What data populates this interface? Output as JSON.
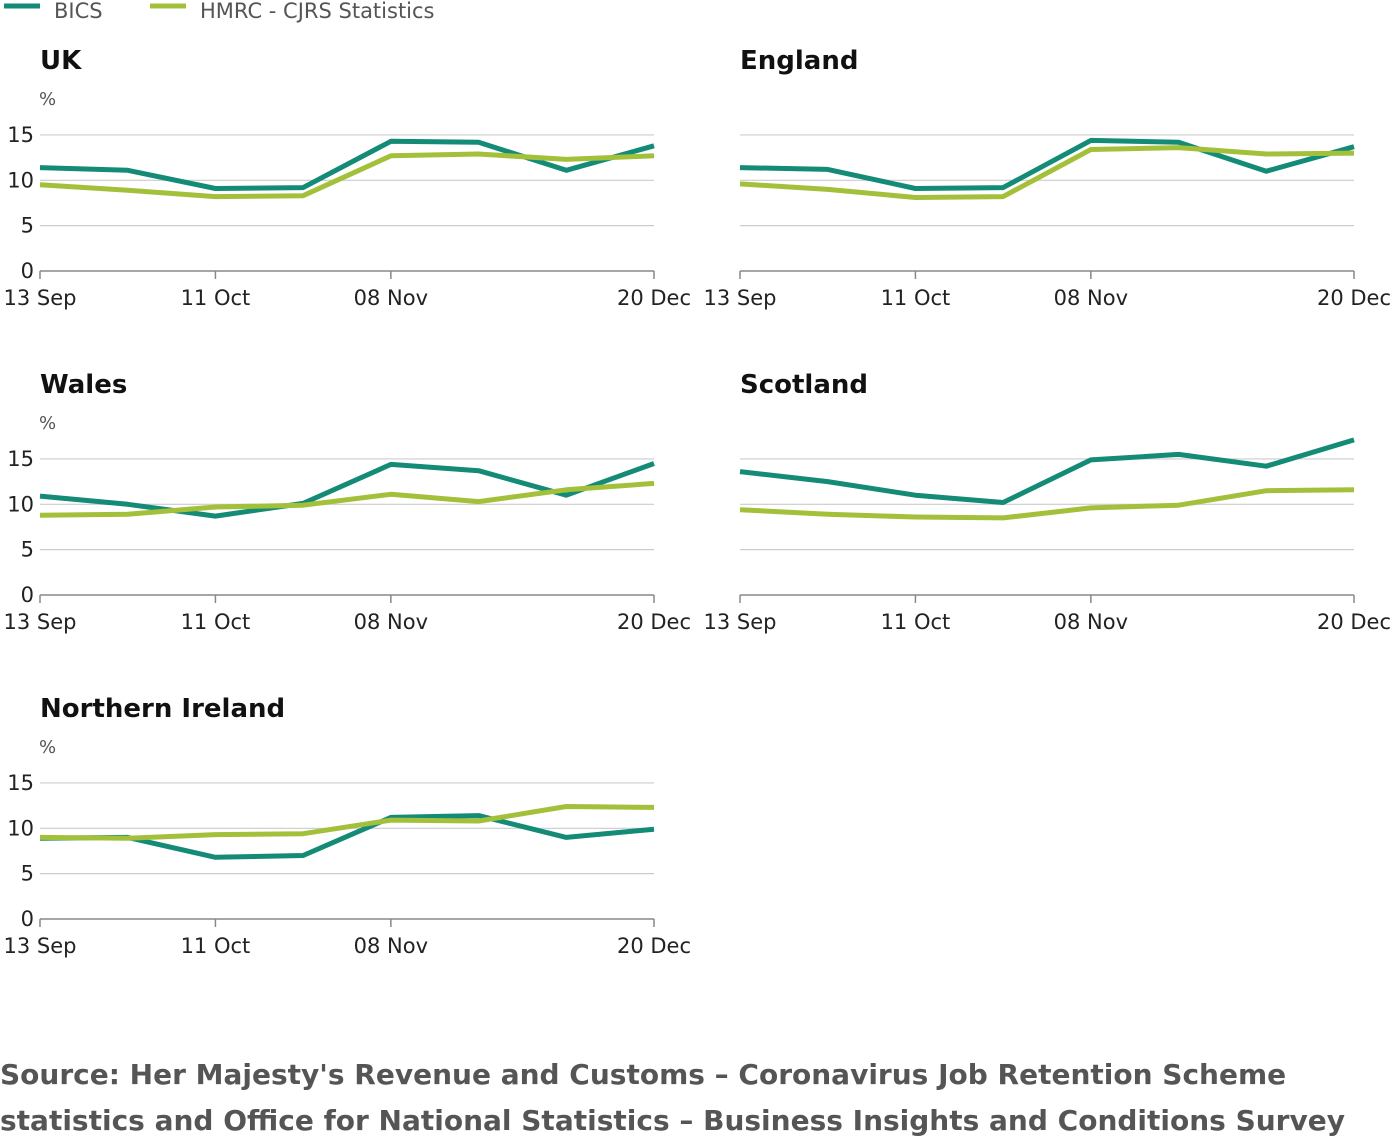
{
  "legend": [
    {
      "name": "BICS",
      "color": "#138b76"
    },
    {
      "name": "HMRC - CJRS Statistics",
      "color": "#a3c03a"
    }
  ],
  "source": "Source: Her Majesty's Revenue and Customs – Coronavirus Job Retention Scheme statistics and Office for National Statistics – Business Insights and Conditions Survey",
  "chart_data": [
    {
      "type": "line",
      "title": "UK",
      "ylabel": "%",
      "x": [
        "13 Sep",
        "27 Sep",
        "11 Oct",
        "25 Oct",
        "08 Nov",
        "22 Nov",
        "06 Dec",
        "20 Dec"
      ],
      "xticks": [
        "13 Sep",
        "11 Oct",
        "08 Nov",
        "20 Dec"
      ],
      "yticks": [
        0,
        5,
        10,
        15
      ],
      "ylim": [
        0,
        18
      ],
      "grid": true,
      "series": [
        {
          "name": "BICS",
          "color": "#138b76",
          "values": [
            11.4,
            11.1,
            9.1,
            9.2,
            14.3,
            14.2,
            11.1,
            13.8
          ]
        },
        {
          "name": "HMRC - CJRS Statistics",
          "color": "#a3c03a",
          "values": [
            9.5,
            8.9,
            8.2,
            8.3,
            12.7,
            12.9,
            12.3,
            12.7
          ]
        }
      ]
    },
    {
      "type": "line",
      "title": "England",
      "ylabel": "",
      "x": [
        "13 Sep",
        "27 Sep",
        "11 Oct",
        "25 Oct",
        "08 Nov",
        "22 Nov",
        "06 Dec",
        "20 Dec"
      ],
      "xticks": [
        "13 Sep",
        "11 Oct",
        "08 Nov",
        "20 Dec"
      ],
      "yticks": [
        0,
        5,
        10,
        15
      ],
      "ylim": [
        0,
        18
      ],
      "grid": true,
      "series": [
        {
          "name": "BICS",
          "color": "#138b76",
          "values": [
            11.4,
            11.2,
            9.1,
            9.2,
            14.4,
            14.2,
            11.0,
            13.7
          ]
        },
        {
          "name": "HMRC - CJRS Statistics",
          "color": "#a3c03a",
          "values": [
            9.6,
            9.0,
            8.1,
            8.2,
            13.4,
            13.6,
            12.9,
            13.0
          ]
        }
      ]
    },
    {
      "type": "line",
      "title": "Wales",
      "ylabel": "%",
      "x": [
        "13 Sep",
        "27 Sep",
        "11 Oct",
        "25 Oct",
        "08 Nov",
        "22 Nov",
        "06 Dec",
        "20 Dec"
      ],
      "xticks": [
        "13 Sep",
        "11 Oct",
        "08 Nov",
        "20 Dec"
      ],
      "yticks": [
        0,
        5,
        10,
        15
      ],
      "ylim": [
        0,
        18
      ],
      "grid": true,
      "series": [
        {
          "name": "BICS",
          "color": "#138b76",
          "values": [
            10.9,
            10.0,
            8.7,
            10.1,
            14.4,
            13.7,
            11.0,
            14.5
          ]
        },
        {
          "name": "HMRC - CJRS Statistics",
          "color": "#a3c03a",
          "values": [
            8.8,
            8.9,
            9.7,
            9.9,
            11.1,
            10.3,
            11.6,
            12.3
          ]
        }
      ]
    },
    {
      "type": "line",
      "title": "Scotland",
      "ylabel": "",
      "x": [
        "13 Sep",
        "27 Sep",
        "11 Oct",
        "25 Oct",
        "08 Nov",
        "22 Nov",
        "06 Dec",
        "20 Dec"
      ],
      "xticks": [
        "13 Sep",
        "11 Oct",
        "08 Nov",
        "20 Dec"
      ],
      "yticks": [
        0,
        5,
        10,
        15
      ],
      "ylim": [
        0,
        18
      ],
      "grid": true,
      "series": [
        {
          "name": "BICS",
          "color": "#138b76",
          "values": [
            13.6,
            12.5,
            11.0,
            10.2,
            14.9,
            15.5,
            14.2,
            17.1
          ]
        },
        {
          "name": "HMRC - CJRS Statistics",
          "color": "#a3c03a",
          "values": [
            9.4,
            8.9,
            8.6,
            8.5,
            9.6,
            9.9,
            11.5,
            11.6
          ]
        }
      ]
    },
    {
      "type": "line",
      "title": "Northern Ireland",
      "ylabel": "%",
      "x": [
        "13 Sep",
        "27 Sep",
        "11 Oct",
        "25 Oct",
        "08 Nov",
        "22 Nov",
        "06 Dec",
        "20 Dec"
      ],
      "xticks": [
        "13 Sep",
        "11 Oct",
        "08 Nov",
        "20 Dec"
      ],
      "yticks": [
        0,
        5,
        10,
        15
      ],
      "ylim": [
        0,
        18
      ],
      "grid": true,
      "series": [
        {
          "name": "BICS",
          "color": "#138b76",
          "values": [
            8.9,
            9.0,
            6.8,
            7.0,
            11.2,
            11.4,
            9.0,
            9.9
          ]
        },
        {
          "name": "HMRC - CJRS Statistics",
          "color": "#a3c03a",
          "values": [
            9.0,
            8.9,
            9.3,
            9.4,
            10.9,
            10.8,
            12.4,
            12.3
          ]
        }
      ]
    }
  ]
}
